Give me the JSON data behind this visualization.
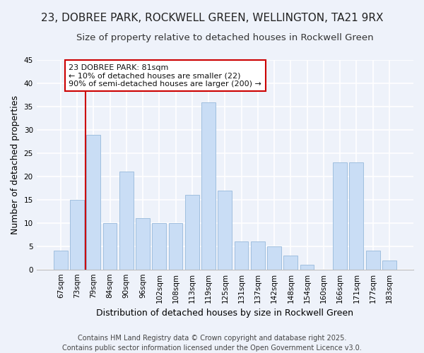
{
  "title": "23, DOBREE PARK, ROCKWELL GREEN, WELLINGTON, TA21 9RX",
  "subtitle": "Size of property relative to detached houses in Rockwell Green",
  "xlabel": "Distribution of detached houses by size in Rockwell Green",
  "ylabel": "Number of detached properties",
  "categories": [
    "67sqm",
    "73sqm",
    "79sqm",
    "84sqm",
    "90sqm",
    "96sqm",
    "102sqm",
    "108sqm",
    "113sqm",
    "119sqm",
    "125sqm",
    "131sqm",
    "137sqm",
    "142sqm",
    "148sqm",
    "154sqm",
    "160sqm",
    "166sqm",
    "171sqm",
    "177sqm",
    "183sqm"
  ],
  "values": [
    4,
    15,
    29,
    10,
    21,
    11,
    10,
    10,
    16,
    36,
    17,
    6,
    6,
    5,
    3,
    1,
    0,
    23,
    23,
    4,
    2
  ],
  "bar_color": "#c9ddf5",
  "bar_edge_color": "#a0bfdf",
  "vline_index": 2,
  "vline_color": "#cc0000",
  "annotation_text": "23 DOBREE PARK: 81sqm\n← 10% of detached houses are smaller (22)\n90% of semi-detached houses are larger (200) →",
  "annotation_box_facecolor": "#ffffff",
  "annotation_box_edgecolor": "#cc0000",
  "ylim": [
    0,
    45
  ],
  "yticks": [
    0,
    5,
    10,
    15,
    20,
    25,
    30,
    35,
    40,
    45
  ],
  "footer_line1": "Contains HM Land Registry data © Crown copyright and database right 2025.",
  "footer_line2": "Contains public sector information licensed under the Open Government Licence v3.0.",
  "bg_color": "#eef2fa",
  "plot_bg_color": "#eef2fa",
  "grid_color": "#ffffff",
  "title_fontsize": 11,
  "subtitle_fontsize": 9.5,
  "axis_label_fontsize": 9,
  "tick_fontsize": 7.5,
  "annotation_fontsize": 8,
  "footer_fontsize": 7
}
